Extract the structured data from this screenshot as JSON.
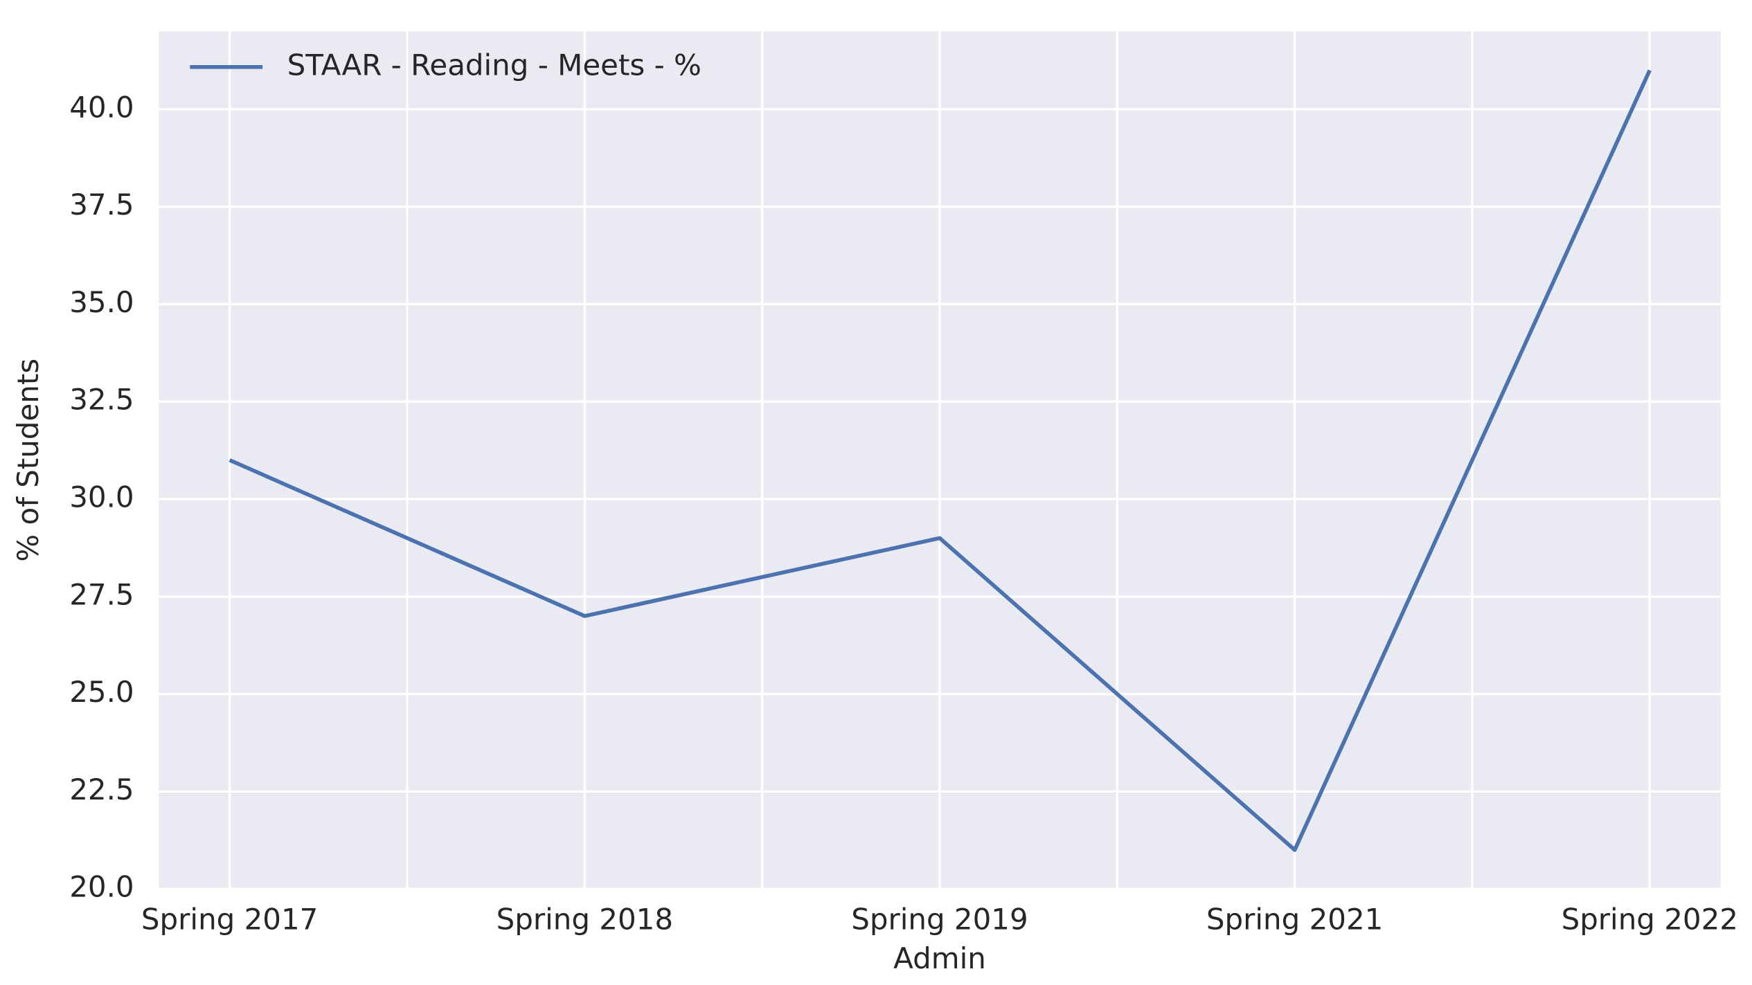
{
  "chart_data": {
    "type": "line",
    "x_label": "Admin",
    "y_label": "% of Students",
    "categories": [
      "Spring 2017",
      "Spring 2018",
      "Spring 2019",
      "Spring 2021",
      "Spring 2022"
    ],
    "series": [
      {
        "name": "STAAR - Reading - Meets - %",
        "color": "#4c72b0",
        "values": [
          31,
          27,
          29,
          21,
          41
        ]
      }
    ],
    "ylim": [
      20,
      42
    ],
    "yticks": [
      {
        "value": 20,
        "label": "20.0"
      },
      22.5,
      {
        "value": 25,
        "label": "25.0"
      },
      27.5,
      {
        "value": 30,
        "label": "30.0"
      },
      32.5,
      {
        "value": 35,
        "label": "35.0"
      },
      37.5,
      {
        "value": 40,
        "label": "40.0"
      }
    ],
    "grid": true,
    "legend": "upper left"
  }
}
